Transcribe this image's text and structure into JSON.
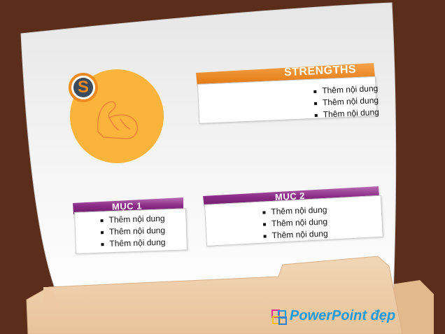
{
  "slide": {
    "letter": "S",
    "strengths": {
      "title": "STRENGTHS",
      "items": [
        "Thêm nội dung",
        "Thêm nội dung",
        "Thêm nội dung"
      ]
    },
    "muc1": {
      "title": "MỤC 1",
      "items": [
        "Thêm nội dung",
        "Thêm nội dung",
        "Thêm nội dung"
      ]
    },
    "muc2": {
      "title": "MỤC 2",
      "items": [
        "Thêm nội dung",
        "Thêm nội dung",
        "Thêm nội dung"
      ]
    }
  },
  "branding": {
    "logo_text": "PowerPoint đẹp"
  },
  "colors": {
    "background": "#5a2e1a",
    "orange": "#f08a1c",
    "yellow_circle": "#fbb43b",
    "purple": "#8a2b86",
    "folder": "#f0d3b3"
  },
  "icons": [
    "flexed-arm-icon",
    "letter-s-badge-icon",
    "ppt-logo-icon"
  ]
}
